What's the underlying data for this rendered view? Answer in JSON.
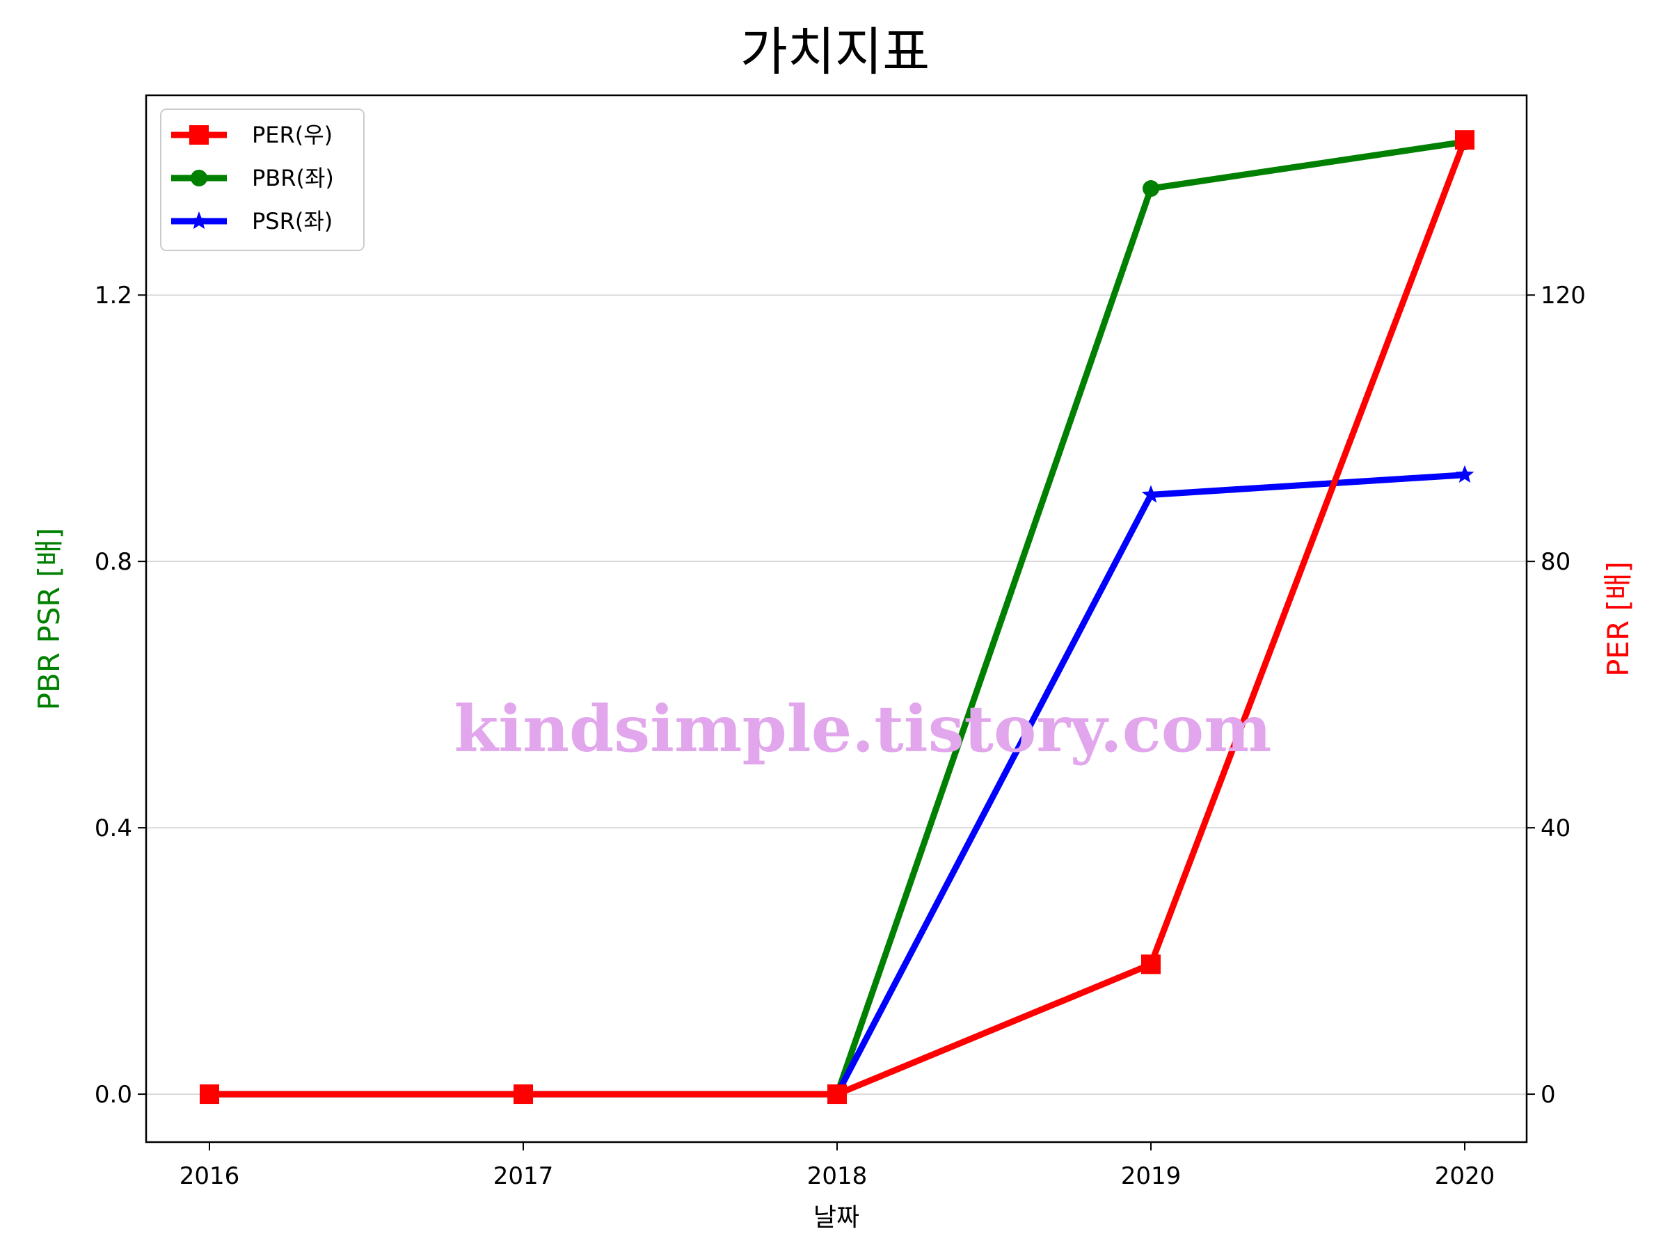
{
  "chart_data": {
    "type": "line",
    "title": "가치지표",
    "xlabel": "날짜",
    "ylabel_left": "PBR PSR [배]",
    "ylabel_right": "PER [배]",
    "ylabel_left_color": "#008000",
    "ylabel_right_color": "#ff0000",
    "categories": [
      "2016",
      "2017",
      "2018",
      "2019",
      "2020"
    ],
    "y_left": {
      "lim": [
        -0.072,
        1.5
      ],
      "ticks": [
        0.0,
        0.4,
        0.8,
        1.2
      ],
      "tick_labels": [
        "0.0",
        "0.4",
        "0.8",
        "1.2"
      ]
    },
    "y_right": {
      "lim": [
        -7.2,
        150
      ],
      "ticks": [
        0,
        40,
        80,
        120
      ],
      "tick_labels": [
        "0",
        "40",
        "80",
        "120"
      ]
    },
    "grid": "horizontal",
    "legend_position": "top-left",
    "series": [
      {
        "name": "PER(우)",
        "axis": "right",
        "color": "#ff0000",
        "marker": "square",
        "values": [
          0,
          0,
          0,
          19.5,
          143.3
        ]
      },
      {
        "name": "PBR(좌)",
        "axis": "left",
        "color": "#008000",
        "marker": "circle",
        "values": [
          0,
          0,
          0,
          1.36,
          1.43
        ]
      },
      {
        "name": "PSR(좌)",
        "axis": "left",
        "color": "#0000ff",
        "marker": "star",
        "values": [
          0,
          0,
          0,
          0.9,
          0.93
        ]
      }
    ]
  },
  "watermark": "kindsimple.tistory.com"
}
